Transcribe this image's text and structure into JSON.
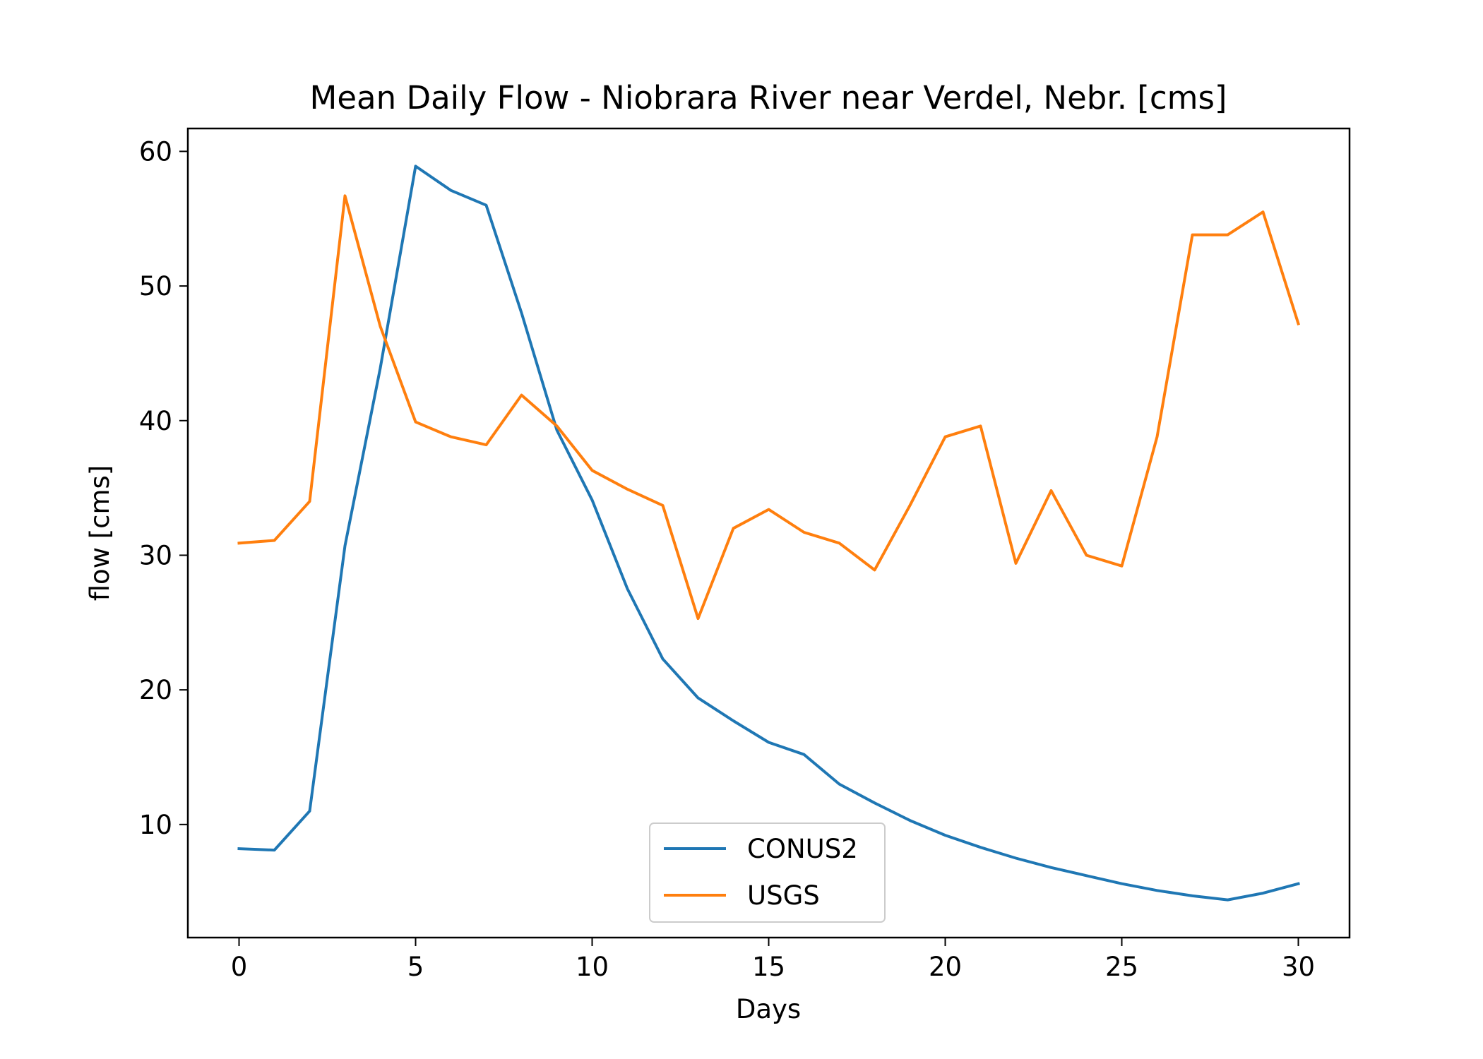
{
  "chart_data": {
    "type": "line",
    "title": "Mean Daily Flow - Niobrara River near Verdel, Nebr. [cms]",
    "xlabel": "Days",
    "ylabel": "flow [cms]",
    "xlim": [
      -1.45,
      31.45
    ],
    "ylim": [
      1.6,
      61.7
    ],
    "xticks": [
      0,
      5,
      10,
      15,
      20,
      25,
      30
    ],
    "yticks": [
      10,
      20,
      30,
      40,
      50,
      60
    ],
    "grid": false,
    "legend_position": "lower-center",
    "x": [
      0,
      1,
      2,
      3,
      4,
      5,
      6,
      7,
      8,
      9,
      10,
      11,
      12,
      13,
      14,
      15,
      16,
      17,
      18,
      19,
      20,
      21,
      22,
      23,
      24,
      25,
      26,
      27,
      28,
      29,
      30
    ],
    "series": [
      {
        "name": "CONUS2",
        "color": "#1f77b4",
        "values": [
          8.2,
          8.1,
          11.0,
          30.7,
          43.9,
          58.9,
          57.1,
          56.0,
          48.0,
          39.3,
          34.1,
          27.5,
          22.3,
          19.4,
          17.7,
          16.1,
          15.2,
          13.0,
          11.6,
          10.3,
          9.2,
          8.3,
          7.5,
          6.8,
          6.2,
          5.6,
          5.1,
          4.7,
          4.4,
          4.9,
          5.6
        ]
      },
      {
        "name": "USGS",
        "color": "#ff7f0e",
        "values": [
          30.9,
          31.1,
          34.0,
          56.7,
          47.0,
          39.9,
          38.8,
          38.2,
          41.9,
          39.6,
          36.3,
          34.9,
          33.7,
          25.3,
          32.0,
          33.4,
          31.7,
          30.9,
          28.9,
          33.7,
          38.8,
          39.6,
          29.4,
          34.8,
          30.0,
          29.2,
          38.8,
          53.8,
          53.8,
          55.5,
          47.2
        ]
      }
    ]
  }
}
